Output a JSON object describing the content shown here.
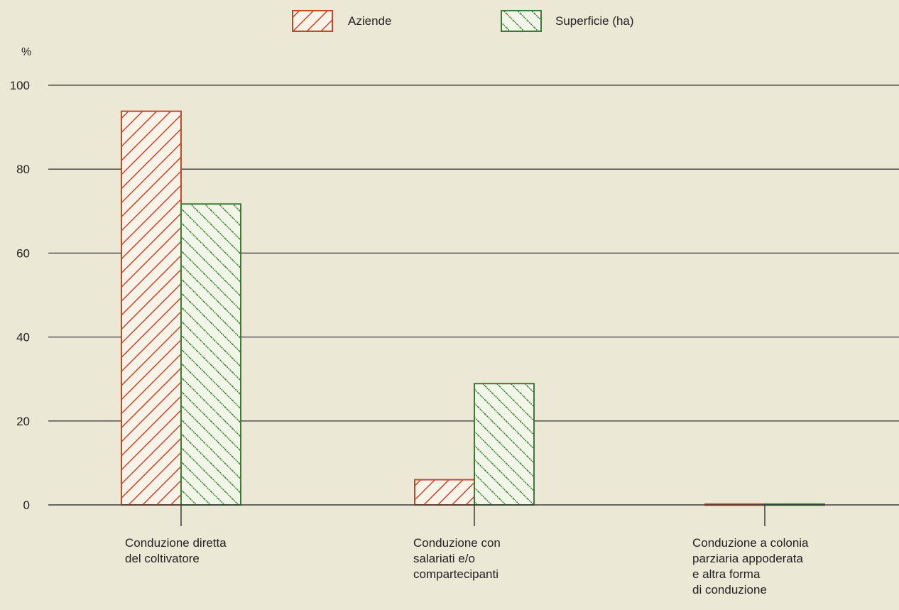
{
  "chart_data": {
    "type": "bar",
    "ylabel": "%",
    "ylim": [
      0,
      100
    ],
    "yticks": [
      0,
      20,
      40,
      60,
      80,
      100
    ],
    "grid": true,
    "legend_position": "top-center",
    "categories": [
      [
        "Conduzione diretta",
        "del coltivatore"
      ],
      [
        "Conduzione con",
        "salariati e/o",
        "compartecipanti"
      ],
      [
        "Conduzione a colonia",
        "parziaria appoderata",
        "e altra forma",
        "di conduzione"
      ]
    ],
    "series": [
      {
        "name": "Aziende",
        "color": "#c8472a",
        "pattern": "hatch-forward",
        "values": [
          93.8,
          6.0,
          0.2
        ]
      },
      {
        "name": "Superficie (ha)",
        "color": "#3d7a34",
        "pattern": "hatch-backward",
        "values": [
          71.7,
          28.9,
          0.2
        ]
      }
    ],
    "colors": {
      "gridline": "#3a3a3a",
      "background": "#ece8d6",
      "text": "#222222"
    }
  }
}
